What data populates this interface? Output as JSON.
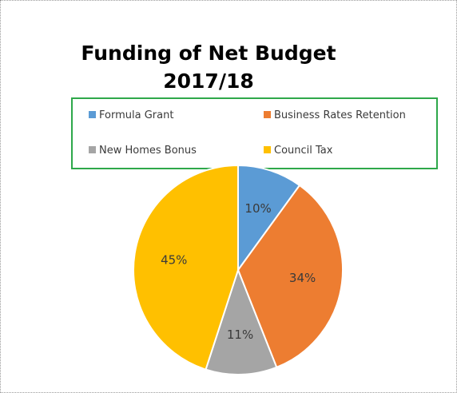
{
  "chart_data": {
    "type": "pie",
    "title": [
      "Funding of Net Budget",
      "2017/18"
    ],
    "categories": [
      "Formula Grant",
      "Business Rates Retention",
      "New Homes Bonus",
      "Council Tax"
    ],
    "values": [
      10,
      34,
      11,
      45
    ],
    "labels": [
      "10%",
      "34%",
      "11%",
      "45%"
    ],
    "colors": [
      "#5b9bd5",
      "#ed7d31",
      "#a5a5a5",
      "#ffc000"
    ],
    "legend_position": "top",
    "legend_border_color": "#2ea84a"
  }
}
